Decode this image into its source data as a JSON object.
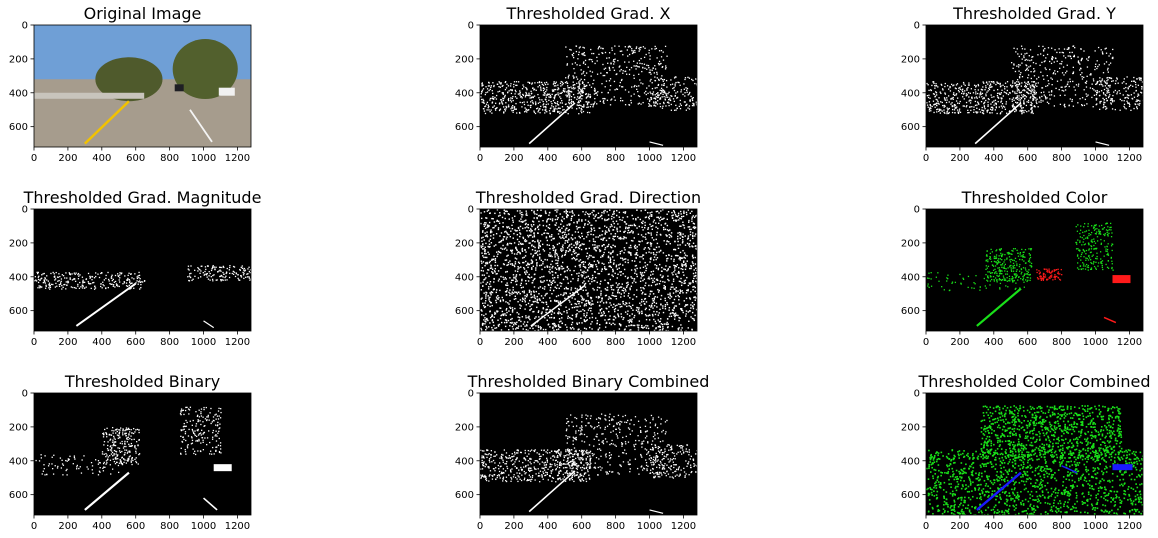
{
  "figure": {
    "panels_count": 9
  },
  "chart_data": [
    {
      "type": "image",
      "title": "Original Image",
      "xticks": [
        "0",
        "200",
        "400",
        "600",
        "800",
        "1000",
        "1200"
      ],
      "yticks": [
        "0",
        "200",
        "400",
        "600"
      ],
      "xlim": [
        0,
        1280
      ],
      "ylim": [
        720,
        0
      ],
      "content": "photo",
      "colors": {
        "sky": "#6f9fd6",
        "road": "#a69c8d",
        "trees": "#4f5a2c",
        "lane_yellow": "#f2c200",
        "lane_white": "#f4f4f4"
      }
    },
    {
      "type": "image",
      "title": "Thresholded Grad. X",
      "xticks": [
        "0",
        "200",
        "400",
        "600",
        "800",
        "1000",
        "1200"
      ],
      "yticks": [
        "0",
        "200",
        "400",
        "600"
      ],
      "xlim": [
        0,
        1280
      ],
      "ylim": [
        720,
        0
      ],
      "content": "sparse_white",
      "colors": {
        "bg": "#000000",
        "fg": "#ffffff"
      }
    },
    {
      "type": "image",
      "title": "Thresholded Grad. Y",
      "xticks": [
        "0",
        "200",
        "400",
        "600",
        "800",
        "1000",
        "1200"
      ],
      "yticks": [
        "0",
        "200",
        "400",
        "600"
      ],
      "xlim": [
        0,
        1280
      ],
      "ylim": [
        720,
        0
      ],
      "content": "sparse_white",
      "colors": {
        "bg": "#000000",
        "fg": "#ffffff"
      }
    },
    {
      "type": "image",
      "title": "Thresholded Grad. Magnitude",
      "xticks": [
        "0",
        "200",
        "400",
        "600",
        "800",
        "1000",
        "1200"
      ],
      "yticks": [
        "0",
        "200",
        "400",
        "600"
      ],
      "xlim": [
        0,
        1280
      ],
      "ylim": [
        720,
        0
      ],
      "content": "very_sparse_white",
      "colors": {
        "bg": "#000000",
        "fg": "#ffffff"
      }
    },
    {
      "type": "image",
      "title": "Thresholded Grad. Direction",
      "xticks": [
        "0",
        "200",
        "400",
        "600",
        "800",
        "1000",
        "1200"
      ],
      "yticks": [
        "0",
        "200",
        "400",
        "600"
      ],
      "xlim": [
        0,
        1280
      ],
      "ylim": [
        720,
        0
      ],
      "content": "dense_noise",
      "colors": {
        "bg": "#000000",
        "fg": "#ffffff"
      }
    },
    {
      "type": "image",
      "title": "Thresholded Color",
      "xticks": [
        "0",
        "200",
        "400",
        "600",
        "800",
        "1000",
        "1200"
      ],
      "yticks": [
        "0",
        "200",
        "400",
        "600"
      ],
      "xlim": [
        0,
        1280
      ],
      "ylim": [
        720,
        0
      ],
      "content": "color_green_red",
      "colors": {
        "bg": "#000000",
        "green": "#19e019",
        "red": "#ff1a1a"
      }
    },
    {
      "type": "image",
      "title": "Thresholded Binary",
      "xticks": [
        "0",
        "200",
        "400",
        "600",
        "800",
        "1000",
        "1200"
      ],
      "yticks": [
        "0",
        "200",
        "400",
        "600"
      ],
      "xlim": [
        0,
        1280
      ],
      "ylim": [
        720,
        0
      ],
      "content": "binary_white",
      "colors": {
        "bg": "#000000",
        "fg": "#ffffff"
      }
    },
    {
      "type": "image",
      "title": "Thresholded Binary Combined",
      "xticks": [
        "0",
        "200",
        "400",
        "600",
        "800",
        "1000",
        "1200"
      ],
      "yticks": [
        "0",
        "200",
        "400",
        "600"
      ],
      "xlim": [
        0,
        1280
      ],
      "ylim": [
        720,
        0
      ],
      "content": "sparse_white",
      "colors": {
        "bg": "#000000",
        "fg": "#ffffff"
      }
    },
    {
      "type": "image",
      "title": "Thresholded Color Combined",
      "xticks": [
        "0",
        "200",
        "400",
        "600",
        "800",
        "1000",
        "1200"
      ],
      "yticks": [
        "0",
        "200",
        "400",
        "600"
      ],
      "xlim": [
        0,
        1280
      ],
      "ylim": [
        720,
        0
      ],
      "content": "color_green_blue",
      "colors": {
        "bg": "#000000",
        "green": "#19e019",
        "blue": "#1a1aff"
      }
    }
  ]
}
